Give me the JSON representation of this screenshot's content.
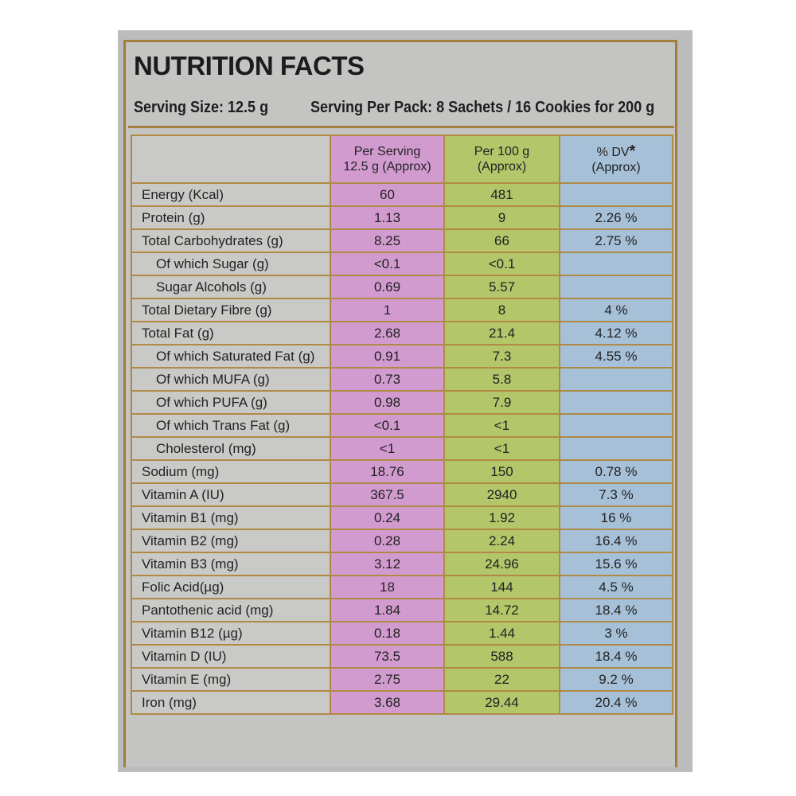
{
  "panel": {
    "title": "NUTRITION FACTS",
    "serving_size": "Serving Size: 12.5 g",
    "serving_per_pack": "Serving Per Pack: 8 Sachets / 16 Cookies for 200 g"
  },
  "columns": {
    "per_serving_line1": "Per Serving",
    "per_serving_line2": "12.5 g (Approx)",
    "per_100g_line1": "Per 100 g",
    "per_100g_line2": "(Approx)",
    "dv_line1": "% DV",
    "dv_star": "*",
    "dv_line2": "(Approx)"
  },
  "rows": [
    {
      "name": "Energy (Kcal)",
      "per_serving": "60",
      "per_100g": "481",
      "dv": ""
    },
    {
      "name": "Protein (g)",
      "per_serving": "1.13",
      "per_100g": "9",
      "dv": "2.26 %"
    },
    {
      "name": "Total Carbohydrates (g)",
      "per_serving": "8.25",
      "per_100g": "66",
      "dv": "2.75 %"
    },
    {
      "name": "Of which Sugar (g)",
      "per_serving": "<0.1",
      "per_100g": "<0.1",
      "dv": ""
    },
    {
      "name": "Sugar Alcohols (g)",
      "per_serving": "0.69",
      "per_100g": "5.57",
      "dv": ""
    },
    {
      "name": "Total Dietary Fibre (g)",
      "per_serving": "1",
      "per_100g": "8",
      "dv": "4 %"
    },
    {
      "name": "Total Fat (g)",
      "per_serving": "2.68",
      "per_100g": "21.4",
      "dv": "4.12 %"
    },
    {
      "name": "Of which Saturated Fat (g)",
      "per_serving": "0.91",
      "per_100g": "7.3",
      "dv": "4.55 %"
    },
    {
      "name": "Of which MUFA (g)",
      "per_serving": "0.73",
      "per_100g": "5.8",
      "dv": ""
    },
    {
      "name": "Of which PUFA (g)",
      "per_serving": "0.98",
      "per_100g": "7.9",
      "dv": ""
    },
    {
      "name": "Of which Trans Fat (g)",
      "per_serving": "<0.1",
      "per_100g": "<1",
      "dv": ""
    },
    {
      "name": "Cholesterol (mg)",
      "per_serving": "<1",
      "per_100g": "<1",
      "dv": ""
    },
    {
      "name": "Sodium (mg)",
      "per_serving": "18.76",
      "per_100g": "150",
      "dv": "0.78 %"
    },
    {
      "name": "Vitamin A (IU)",
      "per_serving": "367.5",
      "per_100g": "2940",
      "dv": "7.3 %"
    },
    {
      "name": "Vitamin B1 (mg)",
      "per_serving": "0.24",
      "per_100g": "1.92",
      "dv": "16 %"
    },
    {
      "name": "Vitamin B2 (mg)",
      "per_serving": "0.28",
      "per_100g": "2.24",
      "dv": "16.4 %"
    },
    {
      "name": "Vitamin  B3 (mg)",
      "per_serving": "3.12",
      "per_100g": "24.96",
      "dv": "15.6 %"
    },
    {
      "name": "Folic Acid(µg)",
      "per_serving": "18",
      "per_100g": "144",
      "dv": "4.5 %"
    },
    {
      "name": "Pantothenic acid (mg)",
      "per_serving": "1.84",
      "per_100g": "14.72",
      "dv": "18.4 %"
    },
    {
      "name": "Vitamin  B12 (µg)",
      "per_serving": "0.18",
      "per_100g": "1.44",
      "dv": "3 %"
    },
    {
      "name": "Vitamin D (IU)",
      "per_serving": "73.5",
      "per_100g": "588",
      "dv": "18.4 %"
    },
    {
      "name": "Vitamin E (mg)",
      "per_serving": "2.75",
      "per_100g": "22",
      "dv": "9.2 %"
    },
    {
      "name": "Iron (mg)",
      "per_serving": "3.68",
      "per_100g": "29.44",
      "dv": "20.4 %"
    }
  ],
  "colors": {
    "border_gold": "#b08a44",
    "per_serving_bg": "#d29bd0",
    "per_100g_bg": "#b3c66a",
    "dv_bg": "#a6c0d8",
    "label_bg": "#c9c9c7"
  }
}
